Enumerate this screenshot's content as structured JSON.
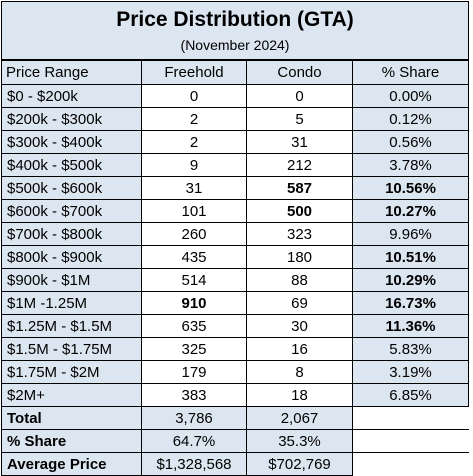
{
  "title": "Price Distribution (GTA)",
  "subtitle": "(November 2024)",
  "headers": [
    "Price Range",
    "Freehold",
    "Condo",
    "% Share"
  ],
  "rows": [
    {
      "range": "$0 - $200k",
      "freehold": "0",
      "condo": "0",
      "share": "0.00%"
    },
    {
      "range": "$200k - $300k",
      "freehold": "2",
      "condo": "5",
      "share": "0.12%"
    },
    {
      "range": "$300k - $400k",
      "freehold": "2",
      "condo": "31",
      "share": "0.56%"
    },
    {
      "range": "$400k - $500k",
      "freehold": "9",
      "condo": "212",
      "share": "3.78%"
    },
    {
      "range": "$500k - $600k",
      "freehold": "31",
      "condo": "587",
      "share": "10.56%"
    },
    {
      "range": "$600k - $700k",
      "freehold": "101",
      "condo": "500",
      "share": "10.27%"
    },
    {
      "range": "$700k - $800k",
      "freehold": "260",
      "condo": "323",
      "share": "9.96%"
    },
    {
      "range": "$800k - $900k",
      "freehold": "435",
      "condo": "180",
      "share": "10.51%"
    },
    {
      "range": "$900k - $1M",
      "freehold": "514",
      "condo": "88",
      "share": "10.29%"
    },
    {
      "range": "$1M -1.25M",
      "freehold": "910",
      "condo": "69",
      "share": "16.73%"
    },
    {
      "range": "$1.25M - $1.5M",
      "freehold": "635",
      "condo": "30",
      "share": "11.36%"
    },
    {
      "range": "$1.5M - $1.75M",
      "freehold": "325",
      "condo": "16",
      "share": "5.83%"
    },
    {
      "range": "$1.75M - $2M",
      "freehold": "179",
      "condo": "8",
      "share": "3.19%"
    },
    {
      "range": "$2M+",
      "freehold": "383",
      "condo": "18",
      "share": "6.85%"
    }
  ],
  "bold_cells": [
    "4.condo",
    "4.share",
    "5.condo",
    "5.share",
    "7.share",
    "8.share",
    "9.freehold",
    "9.share",
    "10.share"
  ],
  "footer": {
    "total": {
      "label": "Total",
      "freehold": "3,786",
      "condo": "2,067"
    },
    "share": {
      "label": "% Share",
      "freehold": "64.7%",
      "condo": "35.3%"
    },
    "average": {
      "label": "Average Price",
      "freehold": "$1,328,568",
      "condo": "$702,769"
    }
  },
  "colors": {
    "header_fill": "#dce6f1",
    "border": "#000000",
    "body_fill": "#ffffff"
  }
}
